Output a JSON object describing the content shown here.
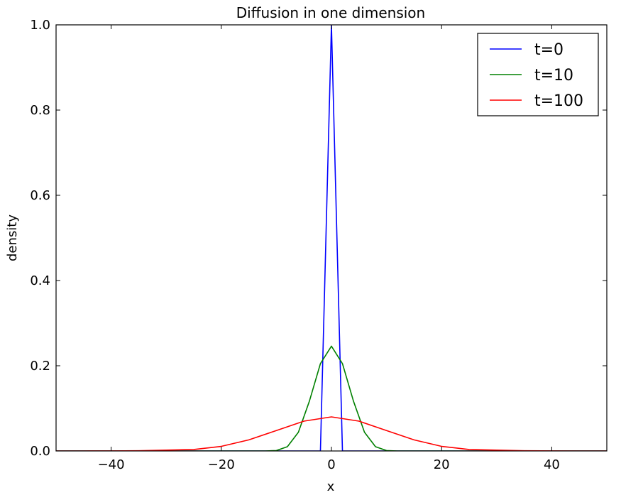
{
  "chart_data": {
    "type": "line",
    "title": "Diffusion in one dimension",
    "xlabel": "x",
    "ylabel": "density",
    "xlim": [
      -50,
      50
    ],
    "ylim": [
      0,
      1.0
    ],
    "xticks": [
      -40,
      -20,
      0,
      20,
      40
    ],
    "xtick_labels": [
      "−40",
      "−20",
      "0",
      "20",
      "40"
    ],
    "yticks": [
      0,
      0.2,
      0.4,
      0.6,
      0.8,
      1.0
    ],
    "ytick_labels": [
      "0.0",
      "0.2",
      "0.4",
      "0.6",
      "0.8",
      "1.0"
    ],
    "grid": false,
    "legend_position": "top-right",
    "series": [
      {
        "name": "t=0",
        "color": "#0000ff",
        "x": [
          -50,
          -2,
          0,
          2,
          50
        ],
        "y": [
          0,
          0,
          1.0,
          0,
          0
        ]
      },
      {
        "name": "t=10",
        "color": "#008000",
        "x": [
          -50,
          -12,
          -10,
          -8,
          -6,
          -4,
          -2,
          0,
          2,
          4,
          6,
          8,
          10,
          12,
          50
        ],
        "y": [
          0,
          0,
          0.001,
          0.01,
          0.044,
          0.117,
          0.205,
          0.246,
          0.205,
          0.117,
          0.044,
          0.01,
          0.001,
          0,
          0
        ]
      },
      {
        "name": "t=100",
        "color": "#ff0000",
        "x": [
          -50,
          -45,
          -40,
          -35,
          -30,
          -25,
          -20,
          -15,
          -10,
          -5,
          0,
          5,
          10,
          15,
          20,
          25,
          30,
          35,
          40,
          45,
          50
        ],
        "y": [
          0,
          1e-05,
          0.0001,
          0.0005,
          0.002,
          0.0035,
          0.0108,
          0.026,
          0.048,
          0.07,
          0.08,
          0.07,
          0.048,
          0.026,
          0.0108,
          0.0035,
          0.002,
          0.0005,
          0.0001,
          1e-05,
          0
        ]
      }
    ]
  }
}
